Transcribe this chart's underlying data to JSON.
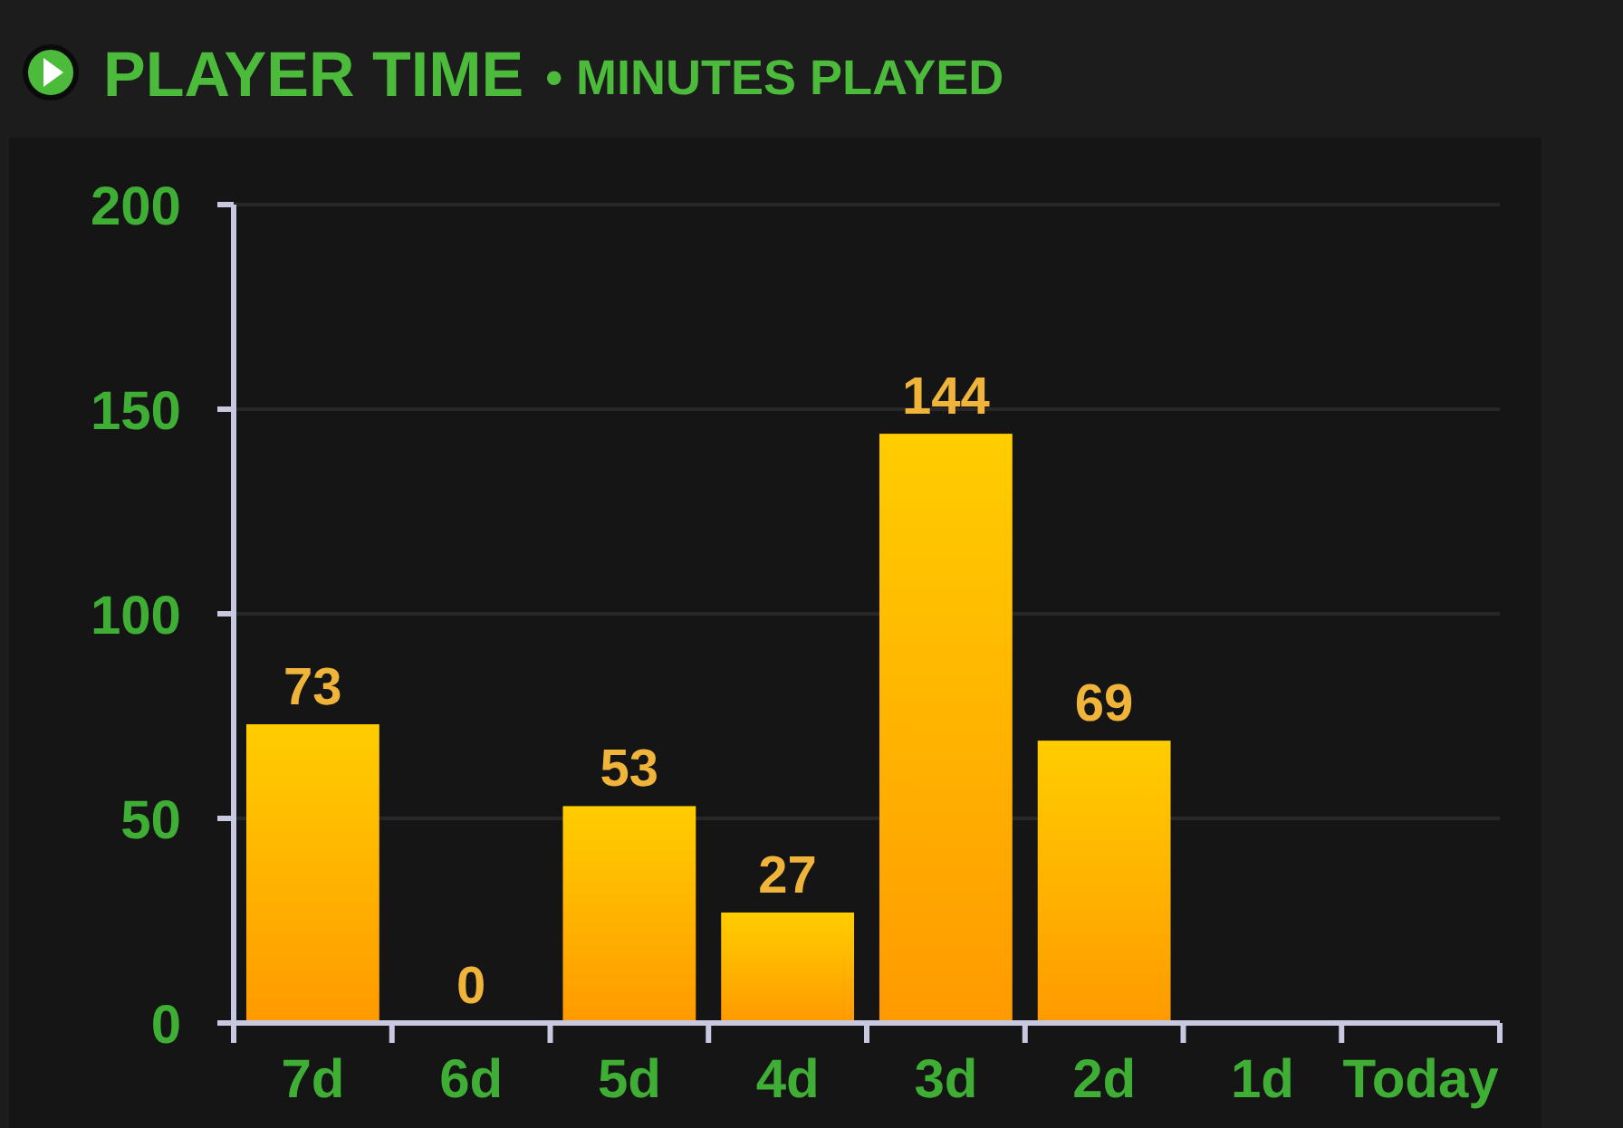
{
  "chart_data": {
    "type": "bar",
    "title": "PLAYER TIME",
    "subtitle": "• MINUTES PLAYED",
    "categories": [
      "7d",
      "6d",
      "5d",
      "4d",
      "3d",
      "2d",
      "1d",
      "Today"
    ],
    "values": [
      73,
      0,
      53,
      27,
      144,
      69,
      null,
      null
    ],
    "color": "#ffb300",
    "ylim": [
      0,
      200
    ],
    "yticks": [
      0,
      50,
      100,
      150,
      200
    ],
    "grid": "y",
    "data_labels": true
  }
}
